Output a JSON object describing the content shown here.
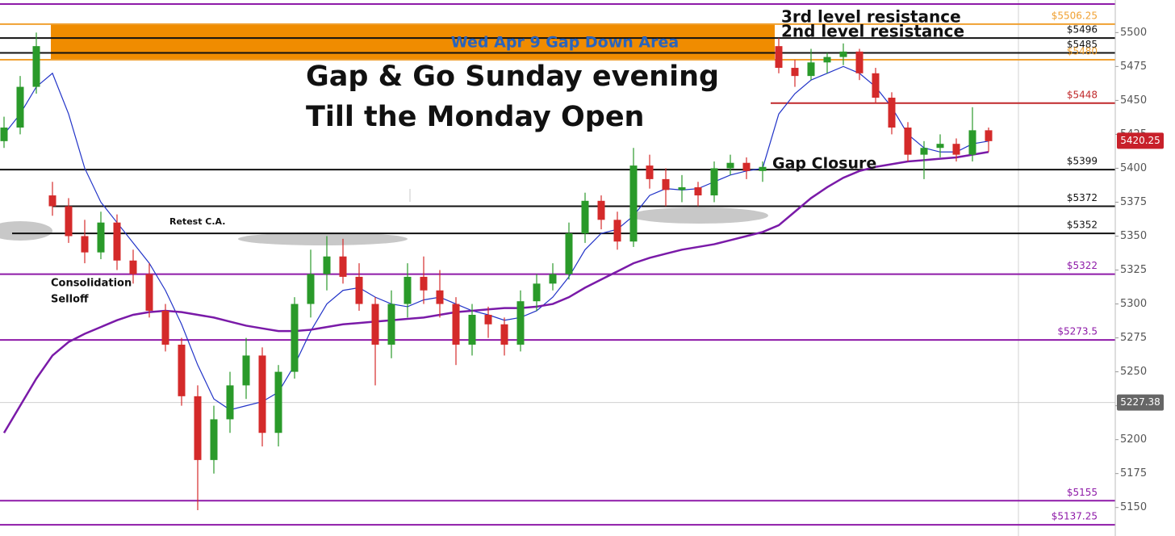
{
  "chart_data": {
    "type": "candlestick",
    "open": [
      5420,
      5430,
      5460,
      5380,
      5372,
      5350,
      5338,
      5360,
      5332,
      5322,
      5295,
      5270,
      5232,
      5185,
      5215,
      5240,
      5262,
      5205,
      5250,
      5300,
      5322,
      5335,
      5320,
      5300,
      5270,
      5300,
      5320,
      5310,
      5300,
      5270,
      5292,
      5285,
      5270,
      5302,
      5315,
      5322,
      5352,
      5376,
      5362,
      5346,
      5402,
      5392,
      5384,
      5386,
      5380,
      5400,
      5404,
      5398,
      5490,
      5474,
      5468,
      5478,
      5482,
      5486,
      5470,
      5452,
      5430,
      5410,
      5415,
      5418,
      5410,
      5428
    ],
    "high": [
      5438,
      5468,
      5500,
      5390,
      5378,
      5362,
      5368,
      5366,
      5340,
      5330,
      5300,
      5275,
      5240,
      5225,
      5250,
      5275,
      5268,
      5255,
      5305,
      5340,
      5350,
      5348,
      5330,
      5305,
      5310,
      5330,
      5335,
      5325,
      5305,
      5300,
      5298,
      5290,
      5310,
      5322,
      5330,
      5360,
      5382,
      5380,
      5368,
      5415,
      5410,
      5400,
      5395,
      5390,
      5405,
      5410,
      5408,
      5405,
      5496,
      5480,
      5488,
      5485,
      5492,
      5488,
      5474,
      5456,
      5434,
      5420,
      5425,
      5422,
      5445,
      5430
    ],
    "low": [
      5415,
      5425,
      5455,
      5365,
      5345,
      5330,
      5333,
      5325,
      5315,
      5290,
      5265,
      5225,
      5148,
      5175,
      5205,
      5230,
      5195,
      5195,
      5245,
      5290,
      5310,
      5315,
      5295,
      5240,
      5260,
      5290,
      5300,
      5290,
      5255,
      5262,
      5275,
      5262,
      5265,
      5295,
      5310,
      5318,
      5345,
      5355,
      5340,
      5342,
      5385,
      5372,
      5375,
      5372,
      5375,
      5395,
      5392,
      5390,
      5470,
      5460,
      5465,
      5470,
      5476,
      5465,
      5448,
      5425,
      5405,
      5392,
      5408,
      5405,
      5405,
      5412
    ],
    "close": [
      5430,
      5460,
      5490,
      5372,
      5350,
      5338,
      5360,
      5332,
      5322,
      5295,
      5270,
      5232,
      5185,
      5215,
      5240,
      5262,
      5205,
      5250,
      5300,
      5322,
      5335,
      5320,
      5300,
      5270,
      5300,
      5320,
      5310,
      5300,
      5270,
      5292,
      5285,
      5270,
      5302,
      5315,
      5322,
      5352,
      5376,
      5362,
      5346,
      5402,
      5392,
      5384,
      5386,
      5380,
      5400,
      5404,
      5398,
      5401,
      5474,
      5468,
      5478,
      5482,
      5486,
      5470,
      5452,
      5430,
      5410,
      5415,
      5418,
      5410,
      5428,
      5420
    ],
    "up_color": "#2a9a2a",
    "down_color": "#d42a2a",
    "series": [
      {
        "color": "#2234c8",
        "values": [
          5425,
          5440,
          5460,
          5470,
          5440,
          5400,
          5375,
          5360,
          5345,
          5330,
          5310,
          5285,
          5255,
          5230,
          5222,
          5225,
          5228,
          5235,
          5255,
          5280,
          5300,
          5310,
          5312,
          5305,
          5300,
          5298,
          5303,
          5305,
          5300,
          5295,
          5292,
          5288,
          5290,
          5295,
          5305,
          5320,
          5340,
          5352,
          5355,
          5365,
          5380,
          5385,
          5384,
          5385,
          5390,
          5395,
          5398,
          5400,
          5440,
          5455,
          5465,
          5470,
          5475,
          5470,
          5460,
          5445,
          5425,
          5415,
          5412,
          5412,
          5418,
          5420
        ]
      },
      {
        "color": "#7a1aa8",
        "values": [
          5205,
          5225,
          5245,
          5262,
          5272,
          5278,
          5283,
          5288,
          5292,
          5294,
          5295,
          5294,
          5292,
          5290,
          5287,
          5284,
          5282,
          5280,
          5280,
          5281,
          5283,
          5285,
          5286,
          5287,
          5288,
          5289,
          5290,
          5292,
          5294,
          5295,
          5296,
          5297,
          5297,
          5298,
          5300,
          5305,
          5312,
          5318,
          5324,
          5330,
          5334,
          5337,
          5340,
          5342,
          5344,
          5347,
          5350,
          5353,
          5358,
          5368,
          5378,
          5386,
          5393,
          5398,
          5401,
          5403,
          5405,
          5406,
          5407,
          5408,
          5410,
          5412
        ]
      }
    ],
    "levels": [
      {
        "value": 5521,
        "color": "#8e1aa8"
      },
      {
        "value": 5506.25,
        "label": "$5506.25",
        "color": "#f0a030"
      },
      {
        "value": 5496,
        "label": "$5496",
        "color": "#111111"
      },
      {
        "value": 5485,
        "label": "$5485",
        "color": "#111111"
      },
      {
        "value": 5480,
        "label": "$5480",
        "color": "#f0a030"
      },
      {
        "value": 5448,
        "label": "$5448",
        "color": "#c0282a"
      },
      {
        "value": 5399,
        "label": "$5399",
        "color": "#111111"
      },
      {
        "value": 5372,
        "label": "$5372",
        "color": "#111111"
      },
      {
        "value": 5352,
        "label": "$5352",
        "color": "#111111"
      },
      {
        "value": 5322,
        "label": "$5322",
        "color": "#8e1aa8"
      },
      {
        "value": 5273.5,
        "label": "$5273.5",
        "color": "#8e1aa8"
      },
      {
        "value": 5155,
        "label": "$5155",
        "color": "#8e1aa8"
      },
      {
        "value": 5137.25,
        "label": "$5137.25",
        "color": "#8e1aa8"
      }
    ],
    "band_color": "#f08c00",
    "last_price": 5420.25,
    "cursor_price": 5227.38,
    "ylim": [
      5129,
      5524
    ],
    "yticks": [
      5150,
      5175,
      5200,
      5225,
      5250,
      5275,
      5300,
      5325,
      5350,
      5375,
      5400,
      5425,
      5450,
      5475,
      5500
    ],
    "annotations": [
      "Wed Apr 9 Gap Down Area",
      "Gap & Go Sunday evening",
      "Till the Monday Open",
      "3rd level resistance",
      "2nd level resistance",
      "Gap Closure",
      "Retest C.A.",
      "Consolidation",
      "Selloff"
    ]
  }
}
